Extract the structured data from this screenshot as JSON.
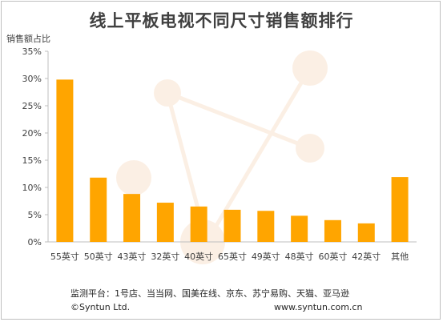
{
  "chart_data": {
    "type": "bar",
    "title": "线上平板电视不同尺寸销售额排行",
    "xlabel": "",
    "ylabel": "销售额占比",
    "categories": [
      "55英寸",
      "50英寸",
      "43英寸",
      "32英寸",
      "40英寸",
      "65英寸",
      "49英寸",
      "48英寸",
      "60英寸",
      "42英寸",
      "其他"
    ],
    "values": [
      29.8,
      11.8,
      8.8,
      7.2,
      6.5,
      5.9,
      5.7,
      4.8,
      4.0,
      3.4,
      11.9
    ],
    "ylim": [
      0,
      35
    ],
    "yticks": [
      0,
      5,
      10,
      15,
      20,
      25,
      30,
      35
    ],
    "ytick_labels": [
      "0%",
      "5%",
      "10%",
      "15%",
      "20%",
      "25%",
      "30%",
      "35%"
    ],
    "grid": false,
    "bar_color": "#FFA500"
  },
  "footer": {
    "source": "监测平台：1号店、当当网、国美在线、京东、苏宁易购、天猫、亚马逊",
    "copyright": "©Syntun Ltd.",
    "website": "www.syntun.com.cn"
  }
}
